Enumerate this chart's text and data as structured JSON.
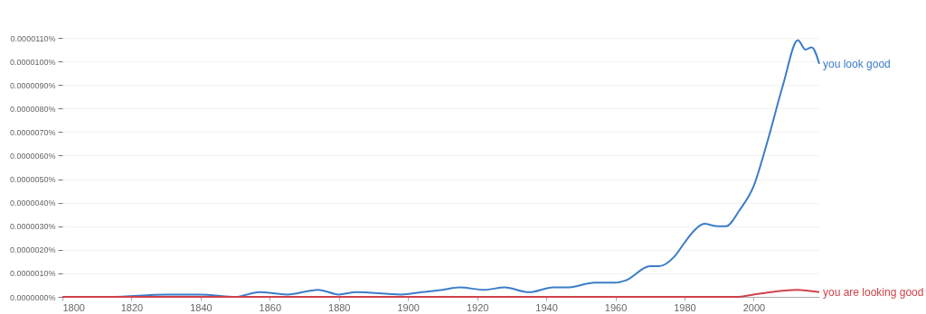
{
  "chart_data": {
    "type": "line",
    "xlim": [
      1800,
      2019
    ],
    "xticks": [
      1800,
      1820,
      1840,
      1860,
      1880,
      1900,
      1920,
      1940,
      1960,
      1980,
      2000
    ],
    "ylim": [
      0,
      1.1e-05
    ],
    "yticks": [
      {
        "value": 0,
        "label": "0.0000000%"
      },
      {
        "value": 1e-06,
        "label": "0.0000010%"
      },
      {
        "value": 2e-06,
        "label": "0.0000020%"
      },
      {
        "value": 3e-06,
        "label": "0.0000030%"
      },
      {
        "value": 4e-06,
        "label": "0.0000040%"
      },
      {
        "value": 5e-06,
        "label": "0.0000050%"
      },
      {
        "value": 6e-06,
        "label": "0.0000060%"
      },
      {
        "value": 7e-06,
        "label": "0.0000070%"
      },
      {
        "value": 8e-06,
        "label": "0.0000080%"
      },
      {
        "value": 9e-06,
        "label": "0.0000090%"
      },
      {
        "value": 1e-05,
        "label": "0.0000100%"
      },
      {
        "value": 1.1e-05,
        "label": "0.0000110%"
      }
    ],
    "grid": "y",
    "series": [
      {
        "name": "you look good",
        "color": "#3b7dc8",
        "x": [
          1800,
          1814,
          1830,
          1840,
          1850,
          1857,
          1865,
          1874,
          1880,
          1885,
          1898,
          1904,
          1910,
          1915,
          1922,
          1928,
          1935,
          1942,
          1946,
          1954,
          1960,
          1963,
          1970,
          1972.6,
          1977,
          1980,
          1982.7,
          1985.7,
          1989.7,
          1992,
          1996,
          2000,
          2004,
          2008.5,
          2012.8,
          2015,
          2016.8,
          2019
        ],
        "values": [
          0,
          0,
          1e-07,
          1e-07,
          0,
          2e-07,
          1e-07,
          3e-07,
          1e-07,
          2e-07,
          1e-07,
          2e-07,
          3e-07,
          4e-07,
          3e-07,
          4e-07,
          2e-07,
          4e-07,
          4e-07,
          6e-07,
          6e-07,
          7e-07,
          1.3e-06,
          1.3e-06,
          1.7e-06,
          2.3e-06,
          2.8e-06,
          3.1e-06,
          3e-06,
          3e-06,
          3.7e-06,
          4.7e-06,
          6.6e-06,
          9e-06,
          1.09e-05,
          1.05e-05,
          1.06e-05,
          9.9e-06
        ]
      },
      {
        "name": "you are looking good",
        "color": "#d0434b",
        "x": [
          1800,
          1995,
          2000,
          2005,
          2012.5,
          2019
        ],
        "values": [
          0,
          0,
          1e-07,
          2e-07,
          3e-07,
          2e-07
        ]
      }
    ]
  }
}
